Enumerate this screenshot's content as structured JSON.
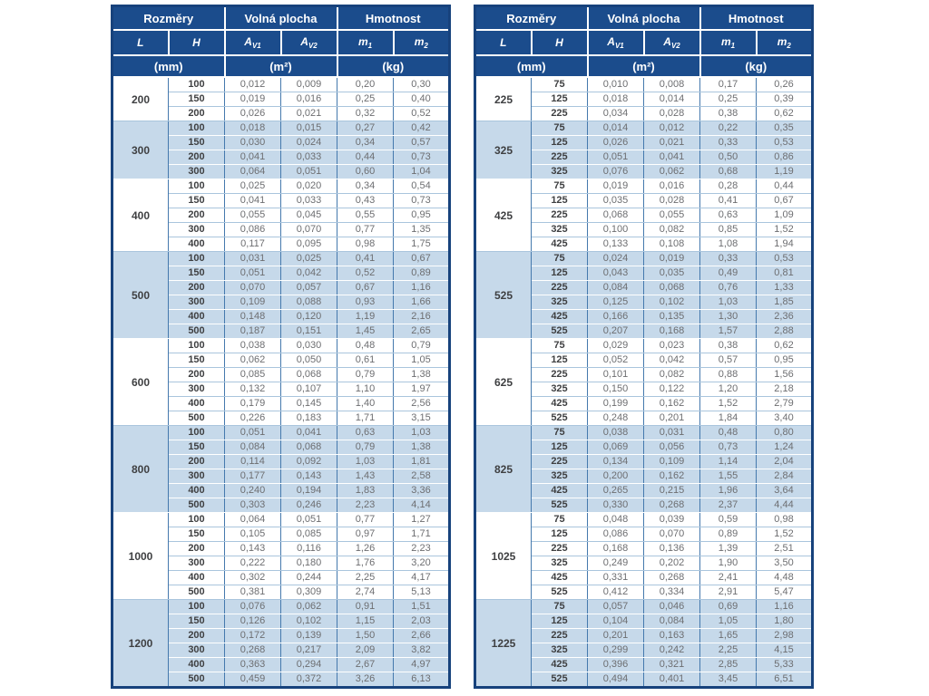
{
  "colors": {
    "header_bg": "#1b4c8c",
    "stripe_bg": "#c6d9ea",
    "v_border": "#4579ad",
    "h_border_plain": "#a9c5dd",
    "h_border_stripe": "#ffffff",
    "outer_border": "#17427c",
    "value_text": "#6d6e71",
    "bold_text": "#3f4042"
  },
  "header": {
    "dims": "Rozměry",
    "free_area": "Volná plocha",
    "weight": "Hmotnost",
    "L": "L",
    "H": "H",
    "A": "A",
    "v1": "V1",
    "v2": "V2",
    "m": "m",
    "s1": "1",
    "s2": "2",
    "mm": "(mm)",
    "m2": "(m²)",
    "kg": "(kg)"
  },
  "tables": [
    {
      "name": "left",
      "groups": [
        {
          "L": "200",
          "striped": false,
          "rows": [
            [
              "100",
              "0,012",
              "0,009",
              "0,20",
              "0,30"
            ],
            [
              "150",
              "0,019",
              "0,016",
              "0,25",
              "0,40"
            ],
            [
              "200",
              "0,026",
              "0,021",
              "0,32",
              "0,52"
            ]
          ]
        },
        {
          "L": "300",
          "striped": true,
          "rows": [
            [
              "100",
              "0,018",
              "0,015",
              "0,27",
              "0,42"
            ],
            [
              "150",
              "0,030",
              "0,024",
              "0,34",
              "0,57"
            ],
            [
              "200",
              "0,041",
              "0,033",
              "0,44",
              "0,73"
            ],
            [
              "300",
              "0,064",
              "0,051",
              "0,60",
              "1,04"
            ]
          ]
        },
        {
          "L": "400",
          "striped": false,
          "rows": [
            [
              "100",
              "0,025",
              "0,020",
              "0,34",
              "0,54"
            ],
            [
              "150",
              "0,041",
              "0,033",
              "0,43",
              "0,73"
            ],
            [
              "200",
              "0,055",
              "0,045",
              "0,55",
              "0,95"
            ],
            [
              "300",
              "0,086",
              "0,070",
              "0,77",
              "1,35"
            ],
            [
              "400",
              "0,117",
              "0,095",
              "0,98",
              "1,75"
            ]
          ]
        },
        {
          "L": "500",
          "striped": true,
          "rows": [
            [
              "100",
              "0,031",
              "0,025",
              "0,41",
              "0,67"
            ],
            [
              "150",
              "0,051",
              "0,042",
              "0,52",
              "0,89"
            ],
            [
              "200",
              "0,070",
              "0,057",
              "0,67",
              "1,16"
            ],
            [
              "300",
              "0,109",
              "0,088",
              "0,93",
              "1,66"
            ],
            [
              "400",
              "0,148",
              "0,120",
              "1,19",
              "2,16"
            ],
            [
              "500",
              "0,187",
              "0,151",
              "1,45",
              "2,65"
            ]
          ]
        },
        {
          "L": "600",
          "striped": false,
          "rows": [
            [
              "100",
              "0,038",
              "0,030",
              "0,48",
              "0,79"
            ],
            [
              "150",
              "0,062",
              "0,050",
              "0,61",
              "1,05"
            ],
            [
              "200",
              "0,085",
              "0,068",
              "0,79",
              "1,38"
            ],
            [
              "300",
              "0,132",
              "0,107",
              "1,10",
              "1,97"
            ],
            [
              "400",
              "0,179",
              "0,145",
              "1,40",
              "2,56"
            ],
            [
              "500",
              "0,226",
              "0,183",
              "1,71",
              "3,15"
            ]
          ]
        },
        {
          "L": "800",
          "striped": true,
          "rows": [
            [
              "100",
              "0,051",
              "0,041",
              "0,63",
              "1,03"
            ],
            [
              "150",
              "0,084",
              "0,068",
              "0,79",
              "1,38"
            ],
            [
              "200",
              "0,114",
              "0,092",
              "1,03",
              "1,81"
            ],
            [
              "300",
              "0,177",
              "0,143",
              "1,43",
              "2,58"
            ],
            [
              "400",
              "0,240",
              "0,194",
              "1,83",
              "3,36"
            ],
            [
              "500",
              "0,303",
              "0,246",
              "2,23",
              "4,14"
            ]
          ]
        },
        {
          "L": "1000",
          "striped": false,
          "rows": [
            [
              "100",
              "0,064",
              "0,051",
              "0,77",
              "1,27"
            ],
            [
              "150",
              "0,105",
              "0,085",
              "0,97",
              "1,71"
            ],
            [
              "200",
              "0,143",
              "0,116",
              "1,26",
              "2,23"
            ],
            [
              "300",
              "0,222",
              "0,180",
              "1,76",
              "3,20"
            ],
            [
              "400",
              "0,302",
              "0,244",
              "2,25",
              "4,17"
            ],
            [
              "500",
              "0,381",
              "0,309",
              "2,74",
              "5,13"
            ]
          ]
        },
        {
          "L": "1200",
          "striped": true,
          "rows": [
            [
              "100",
              "0,076",
              "0,062",
              "0,91",
              "1,51"
            ],
            [
              "150",
              "0,126",
              "0,102",
              "1,15",
              "2,03"
            ],
            [
              "200",
              "0,172",
              "0,139",
              "1,50",
              "2,66"
            ],
            [
              "300",
              "0,268",
              "0,217",
              "2,09",
              "3,82"
            ],
            [
              "400",
              "0,363",
              "0,294",
              "2,67",
              "4,97"
            ],
            [
              "500",
              "0,459",
              "0,372",
              "3,26",
              "6,13"
            ]
          ]
        }
      ]
    },
    {
      "name": "right",
      "groups": [
        {
          "L": "225",
          "striped": false,
          "rows": [
            [
              "75",
              "0,010",
              "0,008",
              "0,17",
              "0,26"
            ],
            [
              "125",
              "0,018",
              "0,014",
              "0,25",
              "0,39"
            ],
            [
              "225",
              "0,034",
              "0,028",
              "0,38",
              "0,62"
            ]
          ]
        },
        {
          "L": "325",
          "striped": true,
          "rows": [
            [
              "75",
              "0,014",
              "0,012",
              "0,22",
              "0,35"
            ],
            [
              "125",
              "0,026",
              "0,021",
              "0,33",
              "0,53"
            ],
            [
              "225",
              "0,051",
              "0,041",
              "0,50",
              "0,86"
            ],
            [
              "325",
              "0,076",
              "0,062",
              "0,68",
              "1,19"
            ]
          ]
        },
        {
          "L": "425",
          "striped": false,
          "rows": [
            [
              "75",
              "0,019",
              "0,016",
              "0,28",
              "0,44"
            ],
            [
              "125",
              "0,035",
              "0,028",
              "0,41",
              "0,67"
            ],
            [
              "225",
              "0,068",
              "0,055",
              "0,63",
              "1,09"
            ],
            [
              "325",
              "0,100",
              "0,082",
              "0,85",
              "1,52"
            ],
            [
              "425",
              "0,133",
              "0,108",
              "1,08",
              "1,94"
            ]
          ]
        },
        {
          "L": "525",
          "striped": true,
          "rows": [
            [
              "75",
              "0,024",
              "0,019",
              "0,33",
              "0,53"
            ],
            [
              "125",
              "0,043",
              "0,035",
              "0,49",
              "0,81"
            ],
            [
              "225",
              "0,084",
              "0,068",
              "0,76",
              "1,33"
            ],
            [
              "325",
              "0,125",
              "0,102",
              "1,03",
              "1,85"
            ],
            [
              "425",
              "0,166",
              "0,135",
              "1,30",
              "2,36"
            ],
            [
              "525",
              "0,207",
              "0,168",
              "1,57",
              "2,88"
            ]
          ]
        },
        {
          "L": "625",
          "striped": false,
          "rows": [
            [
              "75",
              "0,029",
              "0,023",
              "0,38",
              "0,62"
            ],
            [
              "125",
              "0,052",
              "0,042",
              "0,57",
              "0,95"
            ],
            [
              "225",
              "0,101",
              "0,082",
              "0,88",
              "1,56"
            ],
            [
              "325",
              "0,150",
              "0,122",
              "1,20",
              "2,18"
            ],
            [
              "425",
              "0,199",
              "0,162",
              "1,52",
              "2,79"
            ],
            [
              "525",
              "0,248",
              "0,201",
              "1,84",
              "3,40"
            ]
          ]
        },
        {
          "L": "825",
          "striped": true,
          "rows": [
            [
              "75",
              "0,038",
              "0,031",
              "0,48",
              "0,80"
            ],
            [
              "125",
              "0,069",
              "0,056",
              "0,73",
              "1,24"
            ],
            [
              "225",
              "0,134",
              "0,109",
              "1,14",
              "2,04"
            ],
            [
              "325",
              "0,200",
              "0,162",
              "1,55",
              "2,84"
            ],
            [
              "425",
              "0,265",
              "0,215",
              "1,96",
              "3,64"
            ],
            [
              "525",
              "0,330",
              "0,268",
              "2,37",
              "4,44"
            ]
          ]
        },
        {
          "L": "1025",
          "striped": false,
          "rows": [
            [
              "75",
              "0,048",
              "0,039",
              "0,59",
              "0,98"
            ],
            [
              "125",
              "0,086",
              "0,070",
              "0,89",
              "1,52"
            ],
            [
              "225",
              "0,168",
              "0,136",
              "1,39",
              "2,51"
            ],
            [
              "325",
              "0,249",
              "0,202",
              "1,90",
              "3,50"
            ],
            [
              "425",
              "0,331",
              "0,268",
              "2,41",
              "4,48"
            ],
            [
              "525",
              "0,412",
              "0,334",
              "2,91",
              "5,47"
            ]
          ]
        },
        {
          "L": "1225",
          "striped": true,
          "rows": [
            [
              "75",
              "0,057",
              "0,046",
              "0,69",
              "1,16"
            ],
            [
              "125",
              "0,104",
              "0,084",
              "1,05",
              "1,80"
            ],
            [
              "225",
              "0,201",
              "0,163",
              "1,65",
              "2,98"
            ],
            [
              "325",
              "0,299",
              "0,242",
              "2,25",
              "4,15"
            ],
            [
              "425",
              "0,396",
              "0,321",
              "2,85",
              "5,33"
            ],
            [
              "525",
              "0,494",
              "0,401",
              "3,45",
              "6,51"
            ]
          ]
        }
      ]
    }
  ]
}
